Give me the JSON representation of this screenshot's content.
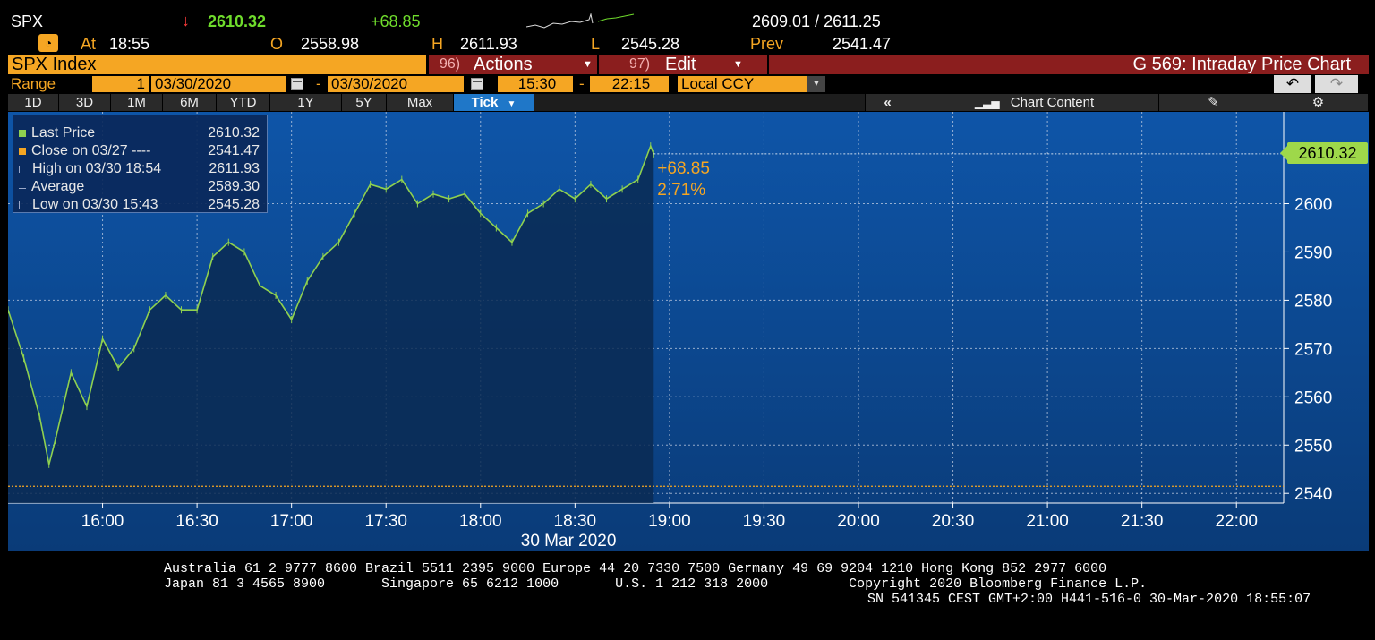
{
  "quote": {
    "ticker": "SPX",
    "direction_icon": "arrow-down",
    "last": "2610.32",
    "change": "+68.85",
    "bid_ask": "2609.01 / 2611.25",
    "at_label": "At",
    "time": "18:55",
    "open_label": "O",
    "open": "2558.98",
    "high_label": "H",
    "high": "2611.93",
    "low_label": "L",
    "low": "2545.28",
    "prev_label": "Prev",
    "prev": "2541.47"
  },
  "titlebar": {
    "security": "SPX Index",
    "actions_num": "96)",
    "actions_label": "Actions",
    "edit_num": "97)",
    "edit_label": "Edit",
    "function_title": "G 569: Intraday Price Chart"
  },
  "rangebar": {
    "range_label": "Range",
    "range_value": "1",
    "start_date": "03/30/2020",
    "dash1": "-",
    "end_date": "03/30/2020",
    "start_time": "15:30",
    "dash2": "-",
    "end_time": "22:15",
    "currency": "Local CCY"
  },
  "tabs": [
    "1D",
    "3D",
    "1M",
    "6M",
    "YTD",
    "1Y",
    "5Y",
    "Max",
    "Tick"
  ],
  "toolbar": {
    "collapse_label": "«",
    "chart_content_label": "Chart Content"
  },
  "legend": [
    {
      "label": "Last Price",
      "value": "2610.32",
      "color": "#8fd14f"
    },
    {
      "label": "Close on 03/27 ----",
      "value": "2541.47",
      "color": "#f5a623"
    },
    {
      "label": "High on 03/30 18:54",
      "value": "2611.93",
      "color": "#9aa8c8"
    },
    {
      "label": "Average",
      "value": "2589.30",
      "color": "#9aa8c8"
    },
    {
      "label": "Low on 03/30 15:43",
      "value": "2545.28",
      "color": "#9aa8c8"
    }
  ],
  "annotations": {
    "change_points": "+68.85",
    "change_pct": "2.71%",
    "last_badge": "2610.32"
  },
  "chart_data": {
    "type": "line",
    "xlabel": "30 Mar 2020",
    "x_ticks": [
      "16:00",
      "16:30",
      "17:00",
      "17:30",
      "18:00",
      "18:30",
      "19:00",
      "19:30",
      "20:00",
      "20:30",
      "21:00",
      "21:30",
      "22:00"
    ],
    "y_ticks": [
      2540,
      2550,
      2560,
      2570,
      2580,
      2590,
      2600
    ],
    "ylim": [
      2538,
      2619
    ],
    "xlim": [
      "15:30",
      "22:15"
    ],
    "grid": true,
    "reference_line": 2541.47,
    "series": [
      {
        "name": "Last Price",
        "x": [
          "15:30",
          "15:35",
          "15:40",
          "15:43",
          "15:45",
          "15:50",
          "15:55",
          "16:00",
          "16:05",
          "16:10",
          "16:15",
          "16:20",
          "16:25",
          "16:30",
          "16:35",
          "16:40",
          "16:45",
          "16:50",
          "16:55",
          "17:00",
          "17:05",
          "17:10",
          "17:15",
          "17:20",
          "17:25",
          "17:30",
          "17:35",
          "17:40",
          "17:45",
          "17:50",
          "17:55",
          "18:00",
          "18:05",
          "18:10",
          "18:15",
          "18:20",
          "18:25",
          "18:30",
          "18:35",
          "18:40",
          "18:45",
          "18:50",
          "18:54",
          "18:55"
        ],
        "values": [
          2578,
          2568,
          2556,
          2546,
          2551,
          2565,
          2558,
          2572,
          2566,
          2570,
          2578,
          2581,
          2578,
          2578,
          2589,
          2592,
          2590,
          2583,
          2581,
          2576,
          2584,
          2589,
          2592,
          2598,
          2604,
          2603,
          2605,
          2600,
          2602,
          2601,
          2602,
          2598,
          2595,
          2592,
          2598,
          2600,
          2603,
          2601,
          2604,
          2601,
          2603,
          2605,
          2611.93,
          2610.32
        ]
      }
    ]
  },
  "footer": {
    "line1": "Australia 61 2 9777 8600 Brazil 5511 2395 9000 Europe 44 20 7330 7500 Germany 49 69 9204 1210 Hong Kong 852 2977 6000",
    "line2": "Japan 81 3 4565 8900       Singapore 65 6212 1000       U.S. 1 212 318 2000          Copyright 2020 Bloomberg Finance L.P.",
    "line3": "SN 541345 CEST GMT+2:00 H441-516-0 30-Mar-2020 18:55:07"
  },
  "colors": {
    "price_line": "#8fd14f",
    "accent_orange": "#f5a623",
    "title_red": "#8b1e1e",
    "chart_bg": "#0d4c96",
    "tab_active": "#1f77c8"
  }
}
